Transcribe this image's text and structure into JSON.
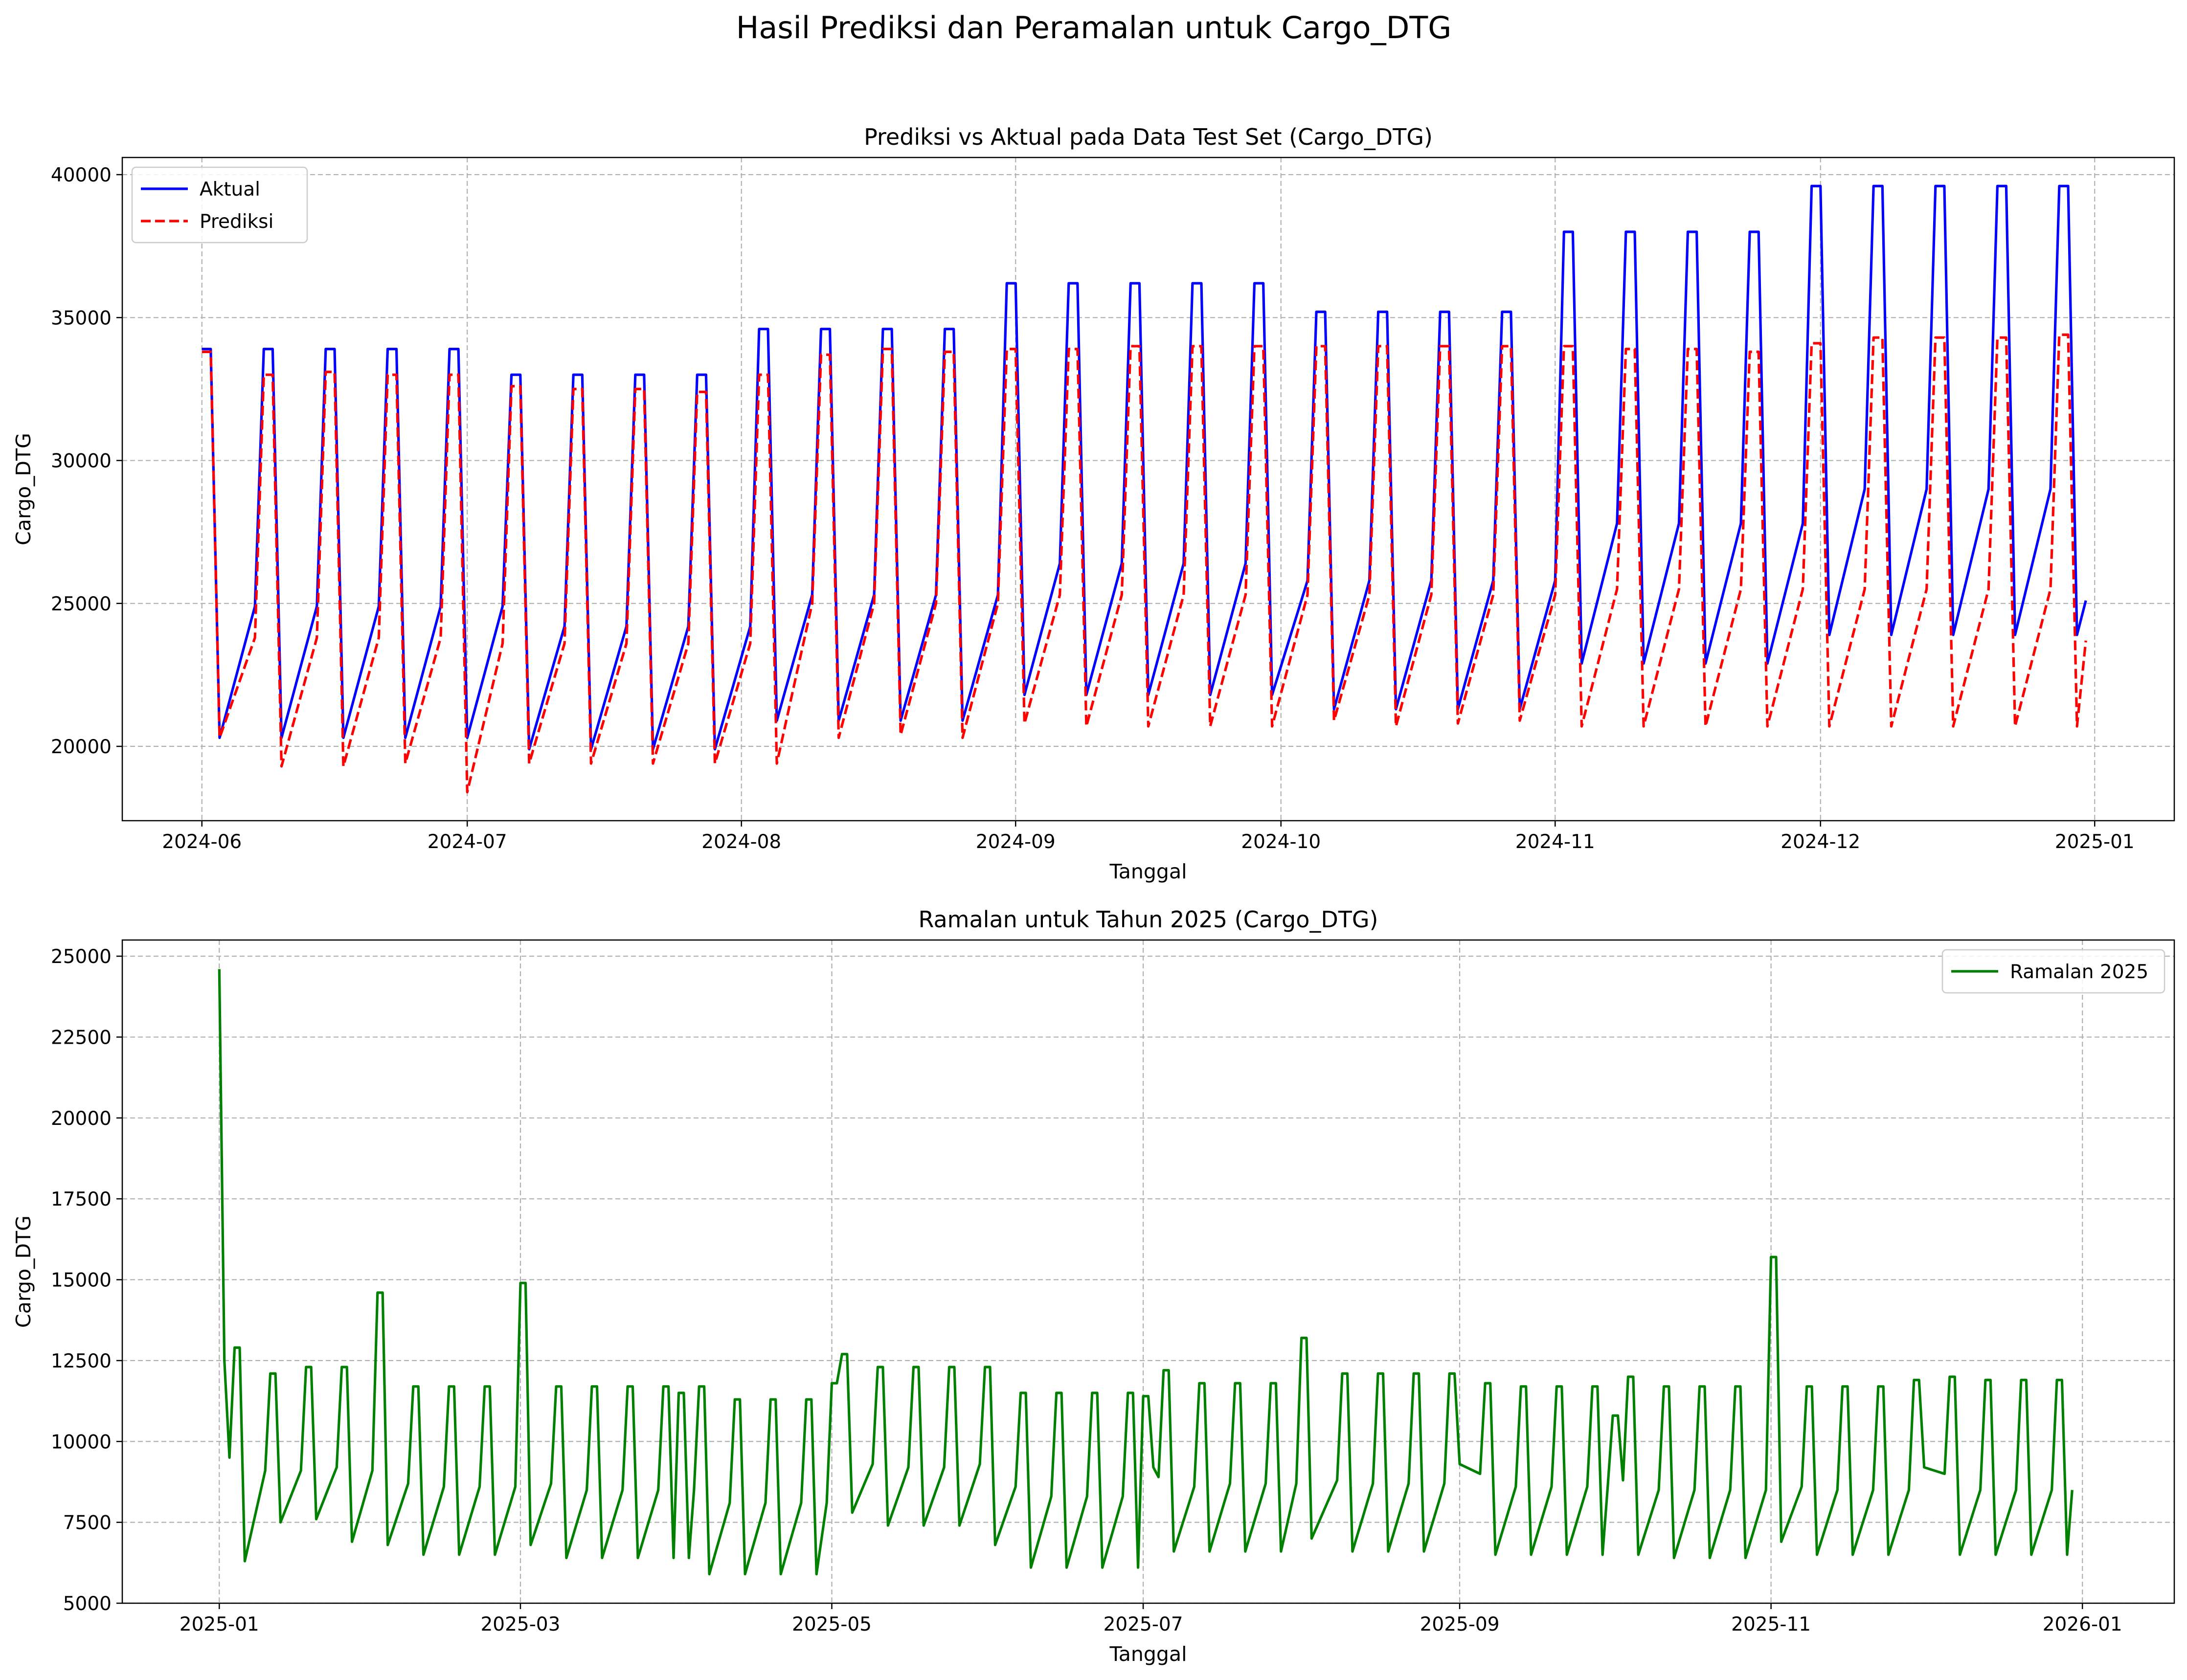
{
  "figure_title": "Hasil Prediksi dan Peramalan untuk Cargo_DTG",
  "chart_data": [
    {
      "type": "line",
      "title": "Prediksi vs Aktual pada Data Test Set (Cargo_DTG)",
      "xlabel": "Tanggal",
      "ylabel": "Cargo_DTG",
      "xlim": [
        "2024-05-23",
        "2025-01-10"
      ],
      "ylim": [
        17400,
        40600
      ],
      "x_ticks": [
        "2024-06",
        "2024-07",
        "2024-08",
        "2024-09",
        "2024-10",
        "2024-11",
        "2024-12",
        "2025-01"
      ],
      "y_ticks": [
        20000,
        25000,
        30000,
        35000,
        40000
      ],
      "grid": true,
      "legend_position": "upper-left",
      "series": [
        {
          "name": "Aktual",
          "color": "#0000ff",
          "style": "solid",
          "weekly_cycles": [
            [
              "2024-06-01",
              33900,
              20300,
              24900
            ],
            [
              "2024-06-08",
              33900,
              20300,
              24900
            ],
            [
              "2024-06-15",
              33900,
              20300,
              24900
            ],
            [
              "2024-06-22",
              33900,
              20300,
              24900
            ],
            [
              "2024-06-29",
              33900,
              20300,
              24900
            ],
            [
              "2024-07-06",
              33000,
              19900,
              24200
            ],
            [
              "2024-07-13",
              33000,
              19900,
              24200
            ],
            [
              "2024-07-20",
              33000,
              19900,
              24200
            ],
            [
              "2024-07-27",
              33000,
              19900,
              24200
            ],
            [
              "2024-08-03",
              34600,
              20900,
              25300
            ],
            [
              "2024-08-10",
              34600,
              20900,
              25300
            ],
            [
              "2024-08-17",
              34600,
              20900,
              25300
            ],
            [
              "2024-08-24",
              34600,
              20900,
              25300
            ],
            [
              "2024-08-31",
              36200,
              21800,
              26400
            ],
            [
              "2024-09-07",
              36200,
              21800,
              26400
            ],
            [
              "2024-09-14",
              36200,
              21800,
              26400
            ],
            [
              "2024-09-21",
              36200,
              21800,
              26400
            ],
            [
              "2024-09-28",
              36200,
              21800,
              25800
            ],
            [
              "2024-10-05",
              35200,
              21300,
              25800
            ],
            [
              "2024-10-12",
              35200,
              21300,
              25800
            ],
            [
              "2024-10-19",
              35200,
              21300,
              25800
            ],
            [
              "2024-10-26",
              35200,
              21300,
              25800
            ],
            [
              "2024-11-02",
              38000,
              22900,
              27800
            ],
            [
              "2024-11-09",
              38000,
              22900,
              27800
            ],
            [
              "2024-11-16",
              38000,
              22900,
              27800
            ],
            [
              "2024-11-23",
              38000,
              22900,
              27800
            ],
            [
              "2024-11-30",
              39600,
              23900,
              29000
            ],
            [
              "2024-12-07",
              39600,
              23900,
              29000
            ],
            [
              "2024-12-14",
              39600,
              23900,
              29000
            ],
            [
              "2024-12-21",
              39600,
              23900,
              29000
            ],
            [
              "2024-12-28",
              39600,
              23900,
              25100
            ]
          ]
        },
        {
          "name": "Prediksi",
          "color": "#ff0000",
          "style": "dashed",
          "weekly_cycles": [
            [
              "2024-06-01",
              33800,
              20300,
              23800
            ],
            [
              "2024-06-08",
              33000,
              19300,
              23800
            ],
            [
              "2024-06-15",
              33100,
              19300,
              23800
            ],
            [
              "2024-06-22",
              33000,
              19400,
              23800
            ],
            [
              "2024-06-29",
              33000,
              18400,
              23600
            ],
            [
              "2024-07-06",
              32600,
              19400,
              23600
            ],
            [
              "2024-07-13",
              32500,
              19400,
              23600
            ],
            [
              "2024-07-20",
              32500,
              19400,
              23600
            ],
            [
              "2024-07-27",
              32400,
              19400,
              23600
            ],
            [
              "2024-08-03",
              33000,
              19400,
              25000
            ],
            [
              "2024-08-10",
              33700,
              20300,
              25000
            ],
            [
              "2024-08-17",
              33900,
              20400,
              25000
            ],
            [
              "2024-08-24",
              33800,
              20300,
              25000
            ],
            [
              "2024-08-31",
              33900,
              20800,
              25300
            ],
            [
              "2024-09-07",
              33900,
              20700,
              25300
            ],
            [
              "2024-09-14",
              34000,
              20700,
              25300
            ],
            [
              "2024-09-21",
              34000,
              20700,
              25300
            ],
            [
              "2024-09-28",
              34000,
              20700,
              25300
            ],
            [
              "2024-10-05",
              34000,
              20900,
              25300
            ],
            [
              "2024-10-12",
              34000,
              20700,
              25300
            ],
            [
              "2024-10-19",
              34000,
              20800,
              25300
            ],
            [
              "2024-10-26",
              34000,
              20900,
              25300
            ],
            [
              "2024-11-02",
              34000,
              20700,
              25500
            ],
            [
              "2024-11-09",
              33900,
              20700,
              25500
            ],
            [
              "2024-11-16",
              33900,
              20700,
              25500
            ],
            [
              "2024-11-23",
              33800,
              20700,
              25500
            ],
            [
              "2024-11-30",
              34100,
              20700,
              25500
            ],
            [
              "2024-12-07",
              34300,
              20700,
              25500
            ],
            [
              "2024-12-14",
              34300,
              20700,
              25500
            ],
            [
              "2024-12-21",
              34300,
              20700,
              25500
            ],
            [
              "2024-12-28",
              34400,
              20700,
              23700
            ]
          ]
        }
      ]
    },
    {
      "type": "line",
      "title": "Ramalan untuk Tahun 2025 (Cargo_DTG)",
      "xlabel": "Tanggal",
      "ylabel": "Cargo_DTG",
      "xlim": [
        "2024-12-13",
        "2026-01-19"
      ],
      "ylim": [
        5000,
        25500
      ],
      "x_ticks": [
        "2025-01",
        "2025-03",
        "2025-05",
        "2025-07",
        "2025-09",
        "2025-11",
        "2026-01"
      ],
      "y_ticks": [
        5000,
        7500,
        10000,
        12500,
        15000,
        17500,
        20000,
        22500,
        25000
      ],
      "grid": true,
      "legend_position": "upper-right",
      "series": [
        {
          "name": "Ramalan 2025",
          "color": "#008000",
          "style": "solid",
          "first_days": [
            [
              "2025-01-01",
              24600
            ],
            [
              "2025-01-02",
              12500
            ],
            [
              "2025-01-03",
              9500
            ],
            [
              "2025-01-04",
              12900
            ]
          ],
          "weekly_cycles": [
            [
              "2025-01-04",
              12900,
              6300,
              9100
            ],
            [
              "2025-01-11",
              12100,
              7500,
              9100
            ],
            [
              "2025-01-18",
              12300,
              7600,
              9200
            ],
            [
              "2025-01-25",
              12300,
              6900,
              9100
            ],
            [
              "2025-02-01",
              14600,
              6800,
              8700
            ],
            [
              "2025-02-08",
              11700,
              6500,
              8600
            ],
            [
              "2025-02-15",
              11700,
              6500,
              8600
            ],
            [
              "2025-02-22",
              11700,
              6500,
              8600
            ],
            [
              "2025-03-01",
              14900,
              6800,
              8700
            ],
            [
              "2025-03-08",
              11700,
              6400,
              8500
            ],
            [
              "2025-03-15",
              11700,
              6400,
              8500
            ],
            [
              "2025-03-22",
              11700,
              6400,
              8500
            ],
            [
              "2025-03-29",
              11700,
              6400,
              8500
            ],
            [
              "2025-04-01",
              11500,
              6400,
              8500
            ],
            [
              "2025-04-05",
              11700,
              5900,
              8100
            ],
            [
              "2025-04-12",
              11300,
              5900,
              8100
            ],
            [
              "2025-04-19",
              11300,
              5900,
              8100
            ],
            [
              "2025-04-26",
              11300,
              5900,
              8100
            ],
            [
              "2025-05-01",
              11800,
              10100,
              9100
            ],
            [
              "2025-05-03",
              12700,
              7800,
              9300
            ],
            [
              "2025-05-10",
              12300,
              7400,
              9200
            ],
            [
              "2025-05-17",
              12300,
              7400,
              9200
            ],
            [
              "2025-05-24",
              12300,
              7400,
              9300
            ],
            [
              "2025-05-31",
              12300,
              6800,
              8600
            ],
            [
              "2025-06-07",
              11500,
              6100,
              8300
            ],
            [
              "2025-06-14",
              11500,
              6100,
              8300
            ],
            [
              "2025-06-21",
              11500,
              6100,
              8300
            ],
            [
              "2025-06-28",
              11500,
              6100,
              8300
            ],
            [
              "2025-07-01",
              11400,
              9200,
              8900
            ],
            [
              "2025-07-05",
              12200,
              6600,
              8600
            ],
            [
              "2025-07-12",
              11800,
              6600,
              8700
            ],
            [
              "2025-07-19",
              11800,
              6600,
              8700
            ],
            [
              "2025-07-26",
              11800,
              6600,
              8700
            ],
            [
              "2025-08-01",
              13200,
              7000,
              8800
            ],
            [
              "2025-08-09",
              12100,
              6600,
              8700
            ],
            [
              "2025-08-16",
              12100,
              6600,
              8700
            ],
            [
              "2025-08-23",
              12100,
              6600,
              8700
            ],
            [
              "2025-08-30",
              12100,
              9300,
              9000
            ],
            [
              "2025-09-06",
              11800,
              6500,
              8600
            ],
            [
              "2025-09-13",
              11700,
              6500,
              8600
            ],
            [
              "2025-09-20",
              11700,
              6500,
              8600
            ],
            [
              "2025-09-27",
              11700,
              6500,
              8600
            ],
            [
              "2025-10-01",
              10800,
              8800,
              8900
            ],
            [
              "2025-10-04",
              12000,
              6500,
              8500
            ],
            [
              "2025-10-11",
              11700,
              6400,
              8500
            ],
            [
              "2025-10-18",
              11700,
              6400,
              8500
            ],
            [
              "2025-10-25",
              11700,
              6400,
              8500
            ],
            [
              "2025-11-01",
              15700,
              6900,
              8600
            ],
            [
              "2025-11-08",
              11700,
              6500,
              8500
            ],
            [
              "2025-11-15",
              11700,
              6500,
              8500
            ],
            [
              "2025-11-22",
              11700,
              6500,
              8500
            ],
            [
              "2025-11-29",
              11900,
              9200,
              9000
            ],
            [
              "2025-12-06",
              12000,
              6500,
              8500
            ],
            [
              "2025-12-13",
              11900,
              6500,
              8500
            ],
            [
              "2025-12-20",
              11900,
              6500,
              8500
            ],
            [
              "2025-12-27",
              11900,
              6500,
              8500
            ]
          ]
        }
      ]
    }
  ]
}
